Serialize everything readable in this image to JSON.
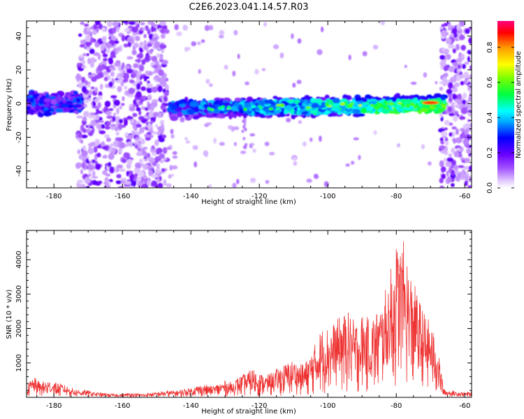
{
  "title": "C2E6.2023.041.14.57.R03",
  "chart_data": [
    {
      "type": "heatmap",
      "xlabel": "Height of straight line (km)",
      "ylabel": "Frequency (Hz)",
      "xlim": [
        -188,
        -58
      ],
      "ylim": [
        -50,
        49
      ],
      "xticks": [
        -180,
        -160,
        -140,
        -120,
        -100,
        -80,
        -60
      ],
      "yticks": [
        -40,
        -20,
        0,
        20,
        40
      ],
      "colorbar": {
        "label": "Normalized spectral amplitude",
        "range": [
          0,
          0.95
        ],
        "ticks": [
          "0.0",
          "0.2",
          "0.4",
          "0.6",
          "0.8"
        ],
        "colormap": "rainbow (white-lavender-purple-blue-cyan-green-yellow-orange-red-pink)"
      },
      "features": [
        {
          "name": "near-zero-frequency band (strong)",
          "x_range": [
            -146,
            -66
          ],
          "freq_center": -2,
          "freq_half_width": 4,
          "peak_amplitude": 0.9,
          "peak_location_km": -70
        },
        {
          "name": "near-zero-frequency band (moderate)",
          "x_range": [
            -188,
            -172
          ],
          "freq_center": 0,
          "freq_half_width": 5,
          "peak_amplitude": 0.3
        },
        {
          "name": "broadband noise",
          "x_range": [
            -173,
            -147
          ],
          "freq_range": [
            -50,
            49
          ],
          "amplitude": 0.1
        },
        {
          "name": "broadband noise",
          "x_range": [
            -67,
            -58
          ],
          "freq_range": [
            -50,
            49
          ],
          "amplitude": 0.1
        }
      ]
    },
    {
      "type": "line",
      "xlabel": "Height of straight line (km)",
      "ylabel": "SNR (10 * v/v)",
      "xlim": [
        -188,
        -58
      ],
      "ylim": [
        0,
        4850
      ],
      "xticks": [
        -180,
        -160,
        -140,
        -120,
        -100,
        -80,
        -60
      ],
      "yticks": [
        1000,
        2000,
        3000,
        4000
      ],
      "color": "#ee3333",
      "series": [
        {
          "x": [
            -188,
            -186,
            -184,
            -182,
            -180,
            -178,
            -176,
            -174,
            -172,
            -170,
            -168,
            -166,
            -164,
            -162,
            -160,
            -158,
            -156,
            -154,
            -152,
            -150,
            -148,
            -146,
            -144,
            -142,
            -140,
            -138,
            -136,
            -134,
            -132,
            -130,
            -128,
            -126,
            -124,
            -122,
            -120,
            -118,
            -116,
            -114,
            -112,
            -110,
            -108,
            -106,
            -104,
            -102,
            -100,
            -98,
            -96,
            -94,
            -92,
            -90,
            -88,
            -86,
            -84,
            -82,
            -80,
            -78,
            -76,
            -74,
            -72,
            -70,
            -68,
            -66,
            -64,
            -62,
            -60,
            -58
          ],
          "y": [
            350,
            600,
            450,
            500,
            450,
            400,
            330,
            250,
            220,
            200,
            150,
            130,
            110,
            100,
            100,
            130,
            120,
            100,
            130,
            150,
            180,
            200,
            200,
            250,
            280,
            350,
            380,
            330,
            400,
            480,
            450,
            600,
            700,
            850,
            700,
            650,
            750,
            900,
            1000,
            1100,
            950,
            1100,
            1500,
            2000,
            2100,
            2200,
            2400,
            2500,
            2200,
            2450,
            2300,
            2500,
            2800,
            3600,
            4500,
            4600,
            3700,
            3100,
            2500,
            2200,
            1500,
            220,
            200,
            170,
            150,
            160
          ]
        }
      ]
    }
  ]
}
